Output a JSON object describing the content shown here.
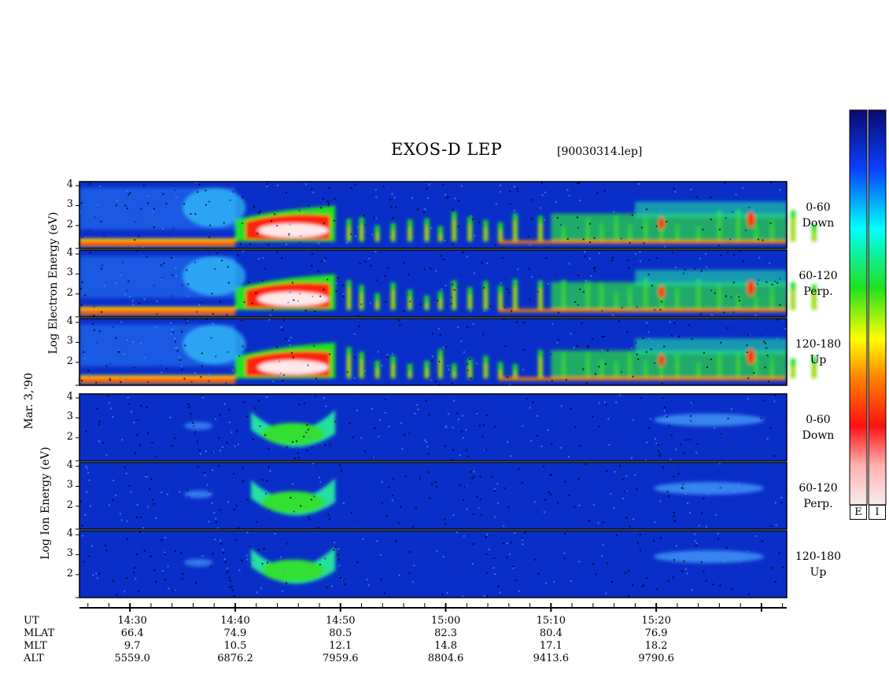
{
  "header": {
    "title": "EXOS-D LEP",
    "filename": "[90030314.lep]"
  },
  "axis_labels": {
    "electron": "Log  Electron  Energy  (eV)",
    "ion": "Log  Ion  Energy  (eV)",
    "date": "Mar. 3,'90"
  },
  "panels": [
    {
      "group": "electron",
      "line1": "0-60",
      "line2": "Down"
    },
    {
      "group": "electron",
      "line1": "60-120",
      "line2": "Perp."
    },
    {
      "group": "electron",
      "line1": "120-180",
      "line2": "Up"
    },
    {
      "group": "ion",
      "line1": "0-60",
      "line2": "Down"
    },
    {
      "group": "ion",
      "line1": "60-120",
      "line2": "Perp."
    },
    {
      "group": "ion",
      "line1": "120-180",
      "line2": "Up"
    }
  ],
  "y_ticks": [
    "4",
    "3",
    "2"
  ],
  "colorbar": {
    "labels": [
      "E",
      "I"
    ]
  },
  "colors": {
    "background_blue": "#0a2fc8",
    "scale": [
      "#f4dede",
      "#ff1a1a",
      "#ff8000",
      "#ffff00",
      "#18e01a",
      "#00ffff",
      "#0a36ff",
      "#0a0a7a"
    ]
  },
  "time_axis": {
    "rows": [
      {
        "label": "UT",
        "values": [
          "14:30",
          "14:40",
          "14:50",
          "15:00",
          "15:10",
          "15:20"
        ]
      },
      {
        "label": "MLAT",
        "values": [
          "66.4",
          "74.9",
          "80.5",
          "82.3",
          "80.4",
          "76.9"
        ]
      },
      {
        "label": "MLT",
        "values": [
          "9.7",
          "10.5",
          "12.1",
          "14.8",
          "17.1",
          "18.2"
        ]
      },
      {
        "label": "ALT",
        "values": [
          "5559.0",
          "6876.2",
          "7959.6",
          "8804.6",
          "9413.6",
          "9790.6"
        ]
      }
    ]
  },
  "chart_data": {
    "type": "heatmap",
    "title": "EXOS-D LEP",
    "x": [
      "14:30",
      "14:40",
      "14:50",
      "15:00",
      "15:10",
      "15:20"
    ],
    "ylim": [
      1,
      4
    ],
    "y_ticks": [
      2,
      3,
      4
    ],
    "ylabel_electron": "Log  Electron  Energy  (eV)",
    "ylabel_ion": "Log  Ion  Energy  (eV)",
    "series": [
      {
        "name": "Electron 0-60 Down"
      },
      {
        "name": "Electron 60-120 Perp."
      },
      {
        "name": "Electron 120-180 Up"
      },
      {
        "name": "Ion 0-60 Down"
      },
      {
        "name": "Ion 60-120 Perp."
      },
      {
        "name": "Ion 120-180 Up"
      }
    ]
  }
}
